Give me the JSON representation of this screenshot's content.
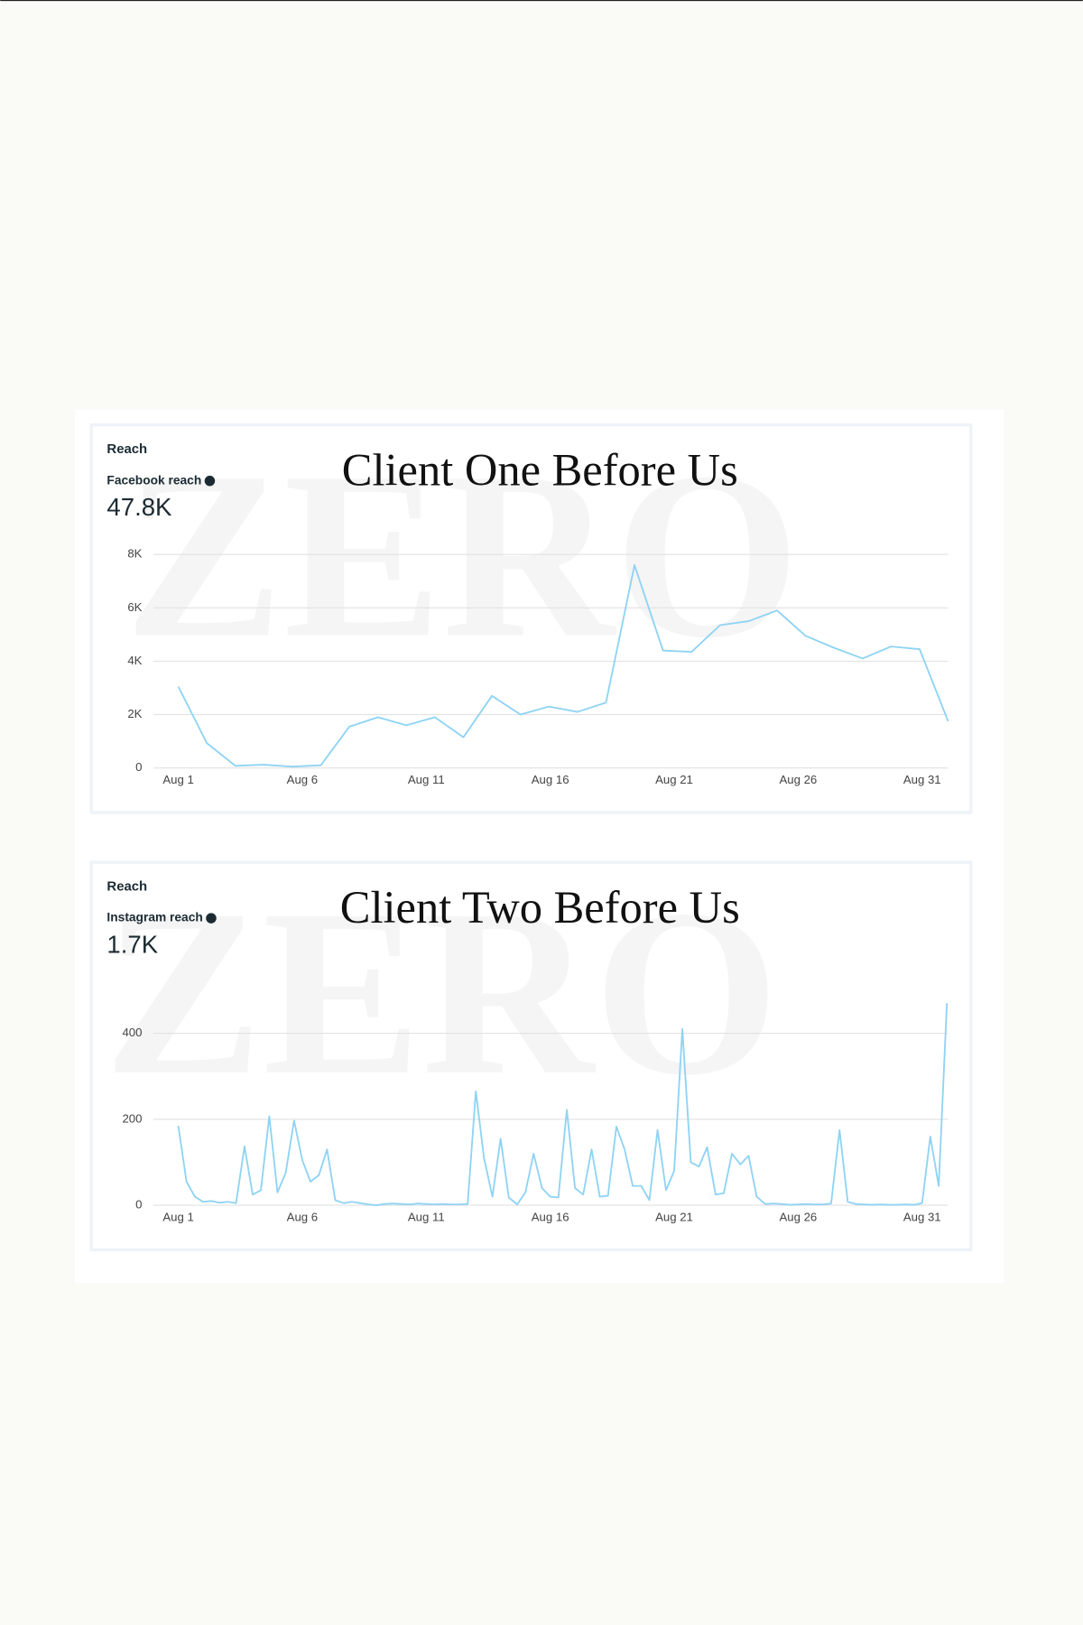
{
  "chart_data": [
    {
      "type": "line",
      "title": "Client One Before Us",
      "heading": "Reach",
      "metric": "Facebook reach",
      "total": "47.8K",
      "watermark": "ZERO",
      "x": [
        1,
        2.15,
        3.3,
        4.45,
        5.6,
        6.75,
        7.9,
        9.05,
        10.2,
        11.35,
        12.5,
        13.65,
        14.8,
        15.95,
        17.1,
        18.25,
        19.4,
        20.55,
        21.7,
        22.85,
        24,
        25.15,
        26.3,
        27.45,
        28.6,
        29.75,
        30.9,
        32.05
      ],
      "series": [
        {
          "name": "Facebook reach",
          "color": "#8fd3f4",
          "values": [
            3050,
            930,
            80,
            120,
            50,
            100,
            1550,
            1900,
            1600,
            1900,
            1150,
            2700,
            2000,
            2300,
            2100,
            2450,
            7600,
            4400,
            4350,
            5350,
            5500,
            5900,
            4950,
            4500,
            4100,
            4550,
            4450,
            1750
          ]
        }
      ],
      "xlim": [
        0,
        32.05
      ],
      "xticks": [
        {
          "value": 1,
          "label": "Aug 1"
        },
        {
          "value": 6,
          "label": "Aug 6"
        },
        {
          "value": 11,
          "label": "Aug 11"
        },
        {
          "value": 16,
          "label": "Aug 16"
        },
        {
          "value": 21,
          "label": "Aug 21"
        },
        {
          "value": 26,
          "label": "Aug 26"
        },
        {
          "value": 31,
          "label": "Aug 31"
        }
      ],
      "ylim": [
        0,
        8000
      ],
      "yticks": [
        0,
        {
          "value": 2000,
          "label": "2K"
        },
        {
          "value": 4000,
          "label": "4K"
        },
        {
          "value": 6000,
          "label": "6K"
        },
        {
          "value": 8000,
          "label": "8K"
        }
      ],
      "grid": true
    },
    {
      "type": "line",
      "title": "Client Two Before Us",
      "heading": "Reach",
      "metric": "Instagram reach",
      "total": "1.7K",
      "watermark": "ZERO",
      "x": [
        1,
        1.33,
        1.67,
        2,
        2.33,
        2.67,
        3,
        3.33,
        3.67,
        4,
        4.33,
        4.67,
        5,
        5.33,
        5.67,
        6,
        6.33,
        6.67,
        7,
        7.33,
        7.67,
        8,
        8.33,
        8.67,
        9,
        9.33,
        9.67,
        10,
        10.33,
        10.67,
        11,
        11.33,
        11.67,
        12,
        12.33,
        12.67,
        13,
        13.33,
        13.67,
        14,
        14.33,
        14.67,
        15,
        15.33,
        15.67,
        16,
        16.33,
        16.67,
        17,
        17.33,
        17.67,
        18,
        18.33,
        18.67,
        19,
        19.33,
        19.67,
        20,
        20.33,
        20.67,
        21,
        21.33,
        21.67,
        22,
        22.33,
        22.67,
        23,
        23.33,
        23.67,
        24,
        24.33,
        24.67,
        25,
        25.33,
        25.67,
        26,
        26.33,
        26.67,
        27,
        27.33,
        27.67,
        28,
        28.33,
        28.67,
        29,
        29.33,
        29.67,
        30,
        30.33,
        30.67,
        31,
        31.33,
        31.67,
        32
      ],
      "series": [
        {
          "name": "Instagram reach",
          "color": "#8fd3f4",
          "values": [
            185,
            55,
            20,
            8,
            10,
            6,
            8,
            5,
            137,
            25,
            35,
            207,
            30,
            75,
            197,
            105,
            55,
            70,
            130,
            12,
            5,
            8,
            5,
            2,
            0,
            3,
            4,
            3,
            2,
            4,
            3,
            2,
            3,
            2,
            2,
            3,
            265,
            110,
            20,
            155,
            18,
            2,
            30,
            120,
            40,
            20,
            18,
            222,
            40,
            25,
            130,
            20,
            22,
            183,
            130,
            45,
            45,
            12,
            175,
            35,
            80,
            410,
            100,
            90,
            135,
            25,
            28,
            120,
            95,
            115,
            20,
            3,
            4,
            3,
            1,
            2,
            3,
            2,
            2,
            4,
            175,
            8,
            3,
            2,
            1,
            2,
            1,
            1,
            2,
            1,
            5,
            160,
            45,
            470
          ]
        }
      ],
      "xlim": [
        0,
        32.05
      ],
      "xticks": [
        {
          "value": 1,
          "label": "Aug 1"
        },
        {
          "value": 6,
          "label": "Aug 6"
        },
        {
          "value": 11,
          "label": "Aug 11"
        },
        {
          "value": 16,
          "label": "Aug 16"
        },
        {
          "value": 21,
          "label": "Aug 21"
        },
        {
          "value": 26,
          "label": "Aug 26"
        },
        {
          "value": 31,
          "label": "Aug 31"
        }
      ],
      "ylim": [
        0,
        470
      ],
      "yticks": [
        0,
        200,
        400
      ],
      "grid": true
    }
  ]
}
